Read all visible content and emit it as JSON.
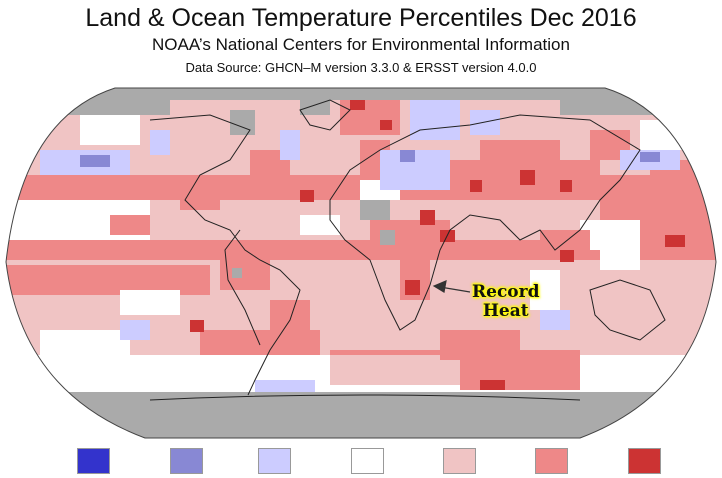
{
  "header": {
    "title": "Land & Ocean Temperature Percentiles Dec 2016",
    "subtitle": "NOAA’s National Centers for Environmental Information",
    "source": "Data Source: GHCN–M version 3.3.0 & ERSST version 4.0.0"
  },
  "annotation": {
    "line1": "Record",
    "line2": "Heat"
  },
  "legend": {
    "colors": [
      "#3333cc",
      "#8888d4",
      "#ccccff",
      "#ffffff",
      "#f0c4c4",
      "#ee8888",
      "#cc3333"
    ],
    "no_data_color": "#aaaaaa"
  }
}
